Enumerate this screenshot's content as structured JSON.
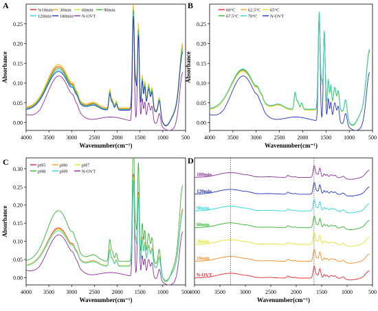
{
  "figure": {
    "panel_letters": [
      "A",
      "B",
      "C",
      "D"
    ]
  },
  "chart_data": [
    {
      "panel": "A",
      "type": "line",
      "xlabel": "Wavenumber(cm⁻¹)",
      "ylabel": "Absorbance",
      "xlim": [
        4000,
        500
      ],
      "ylim": [
        -0.02,
        0.3
      ],
      "xticks": [
        4000,
        3500,
        3000,
        2500,
        2000,
        1500,
        1000,
        500
      ],
      "yticks": [
        0.0,
        0.05,
        0.1,
        0.15,
        0.2,
        0.25
      ],
      "legend_position": "top-left",
      "legend_columns": 4,
      "series": [
        {
          "name": "%10min",
          "color": "#e8242c",
          "variant": "treated",
          "scale": 1.07,
          "offset": 0.0
        },
        {
          "name": "30min",
          "color": "#f5a623",
          "variant": "treated",
          "scale": 1.1,
          "offset": 0.002
        },
        {
          "name": "60min",
          "color": "#e3e32a",
          "variant": "treated",
          "scale": 1.08,
          "offset": 0.001
        },
        {
          "name": "90min",
          "color": "#2fb52f",
          "variant": "treated",
          "scale": 1.04,
          "offset": 0.0
        },
        {
          "name": "120min",
          "color": "#2ad6d6",
          "variant": "treated",
          "scale": 1.0,
          "offset": 0.001
        },
        {
          "name": "180min",
          "color": "#1f2fc4",
          "variant": "treated",
          "scale": 0.98,
          "offset": 0.0
        },
        {
          "name": "N-OVT",
          "color": "#8b2c9a",
          "variant": "native",
          "scale": 1.0,
          "offset": 0.0
        }
      ]
    },
    {
      "panel": "B",
      "type": "line",
      "xlabel": "Wavenumber(cm⁻¹)",
      "ylabel": "Absorbance",
      "xlim": [
        4000,
        500
      ],
      "ylim": [
        -0.02,
        0.3
      ],
      "xticks": [
        4000,
        3500,
        3000,
        2500,
        2000,
        1500,
        1000,
        500
      ],
      "yticks": [
        0.0,
        0.05,
        0.1,
        0.15,
        0.2,
        0.25
      ],
      "legend_position": "top-left",
      "legend_columns": 3,
      "series": [
        {
          "name": "60°C",
          "color": "#e8242c",
          "variant": "treated",
          "scale": 1.0,
          "offset": 0.0
        },
        {
          "name": "62.5°C",
          "color": "#f5a623",
          "variant": "treated",
          "scale": 0.99,
          "offset": 0.001
        },
        {
          "name": "65°C",
          "color": "#e3e32a",
          "variant": "treated",
          "scale": 0.98,
          "offset": 0.0
        },
        {
          "name": "67.5°C",
          "color": "#2fb52f",
          "variant": "treated",
          "scale": 1.0,
          "offset": 0.002
        },
        {
          "name": "70°C",
          "color": "#2ad6d6",
          "variant": "treated",
          "scale": 1.02,
          "offset": 0.001
        },
        {
          "name": "N-OVT",
          "color": "#1f2fc4",
          "variant": "native",
          "scale": 1.0,
          "offset": 0.0
        }
      ]
    },
    {
      "panel": "C",
      "type": "line",
      "xlabel": "Wavenumber(cm⁻¹)",
      "ylabel": "Absorbance",
      "xlim": [
        4000,
        500
      ],
      "ylim": [
        -0.02,
        0.33
      ],
      "xticks": [
        4000,
        3500,
        3000,
        2500,
        2000,
        1500,
        1000,
        500
      ],
      "yticks": [
        0.0,
        0.05,
        0.1,
        0.15,
        0.2,
        0.25,
        0.3
      ],
      "legend_position": "top-left",
      "legend_columns": 3,
      "series": [
        {
          "name": "pH5",
          "color": "#e8242c",
          "variant": "treated",
          "scale": 1.04,
          "offset": 0.0
        },
        {
          "name": "pH6",
          "color": "#f5a623",
          "variant": "treated",
          "scale": 1.02,
          "offset": 0.0
        },
        {
          "name": "pH7",
          "color": "#e3e32a",
          "variant": "treated",
          "scale": 1.0,
          "offset": 0.001
        },
        {
          "name": "pH8",
          "color": "#2fb52f",
          "variant": "treated",
          "scale": 1.4,
          "offset": 0.0
        },
        {
          "name": "pH9",
          "color": "#2ad6d6",
          "variant": "treated",
          "scale": 0.98,
          "offset": 0.0
        },
        {
          "name": "N-OVT",
          "color": "#8b2c9a",
          "variant": "native",
          "scale": 1.0,
          "offset": 0.0
        }
      ]
    },
    {
      "panel": "D",
      "type": "line",
      "xlabel": "Wavenumber(cm⁻¹)",
      "xlim": [
        4000,
        500
      ],
      "xticks": [
        4000,
        3500,
        3000,
        2500,
        2000,
        1500,
        1000,
        500
      ],
      "stacked": true,
      "reference_lines": [
        3290,
        1650
      ],
      "series": [
        {
          "name": "N-OVT",
          "color": "#e8242c"
        },
        {
          "name": "10min",
          "color": "#f58a1f"
        },
        {
          "name": "30min",
          "color": "#e3e32a"
        },
        {
          "name": "60min",
          "color": "#2fb52f"
        },
        {
          "name": "90min",
          "color": "#2ad6d6"
        },
        {
          "name": "120min",
          "color": "#1f2fc4"
        },
        {
          "name": "180min",
          "color": "#8b2c9a"
        }
      ]
    }
  ]
}
